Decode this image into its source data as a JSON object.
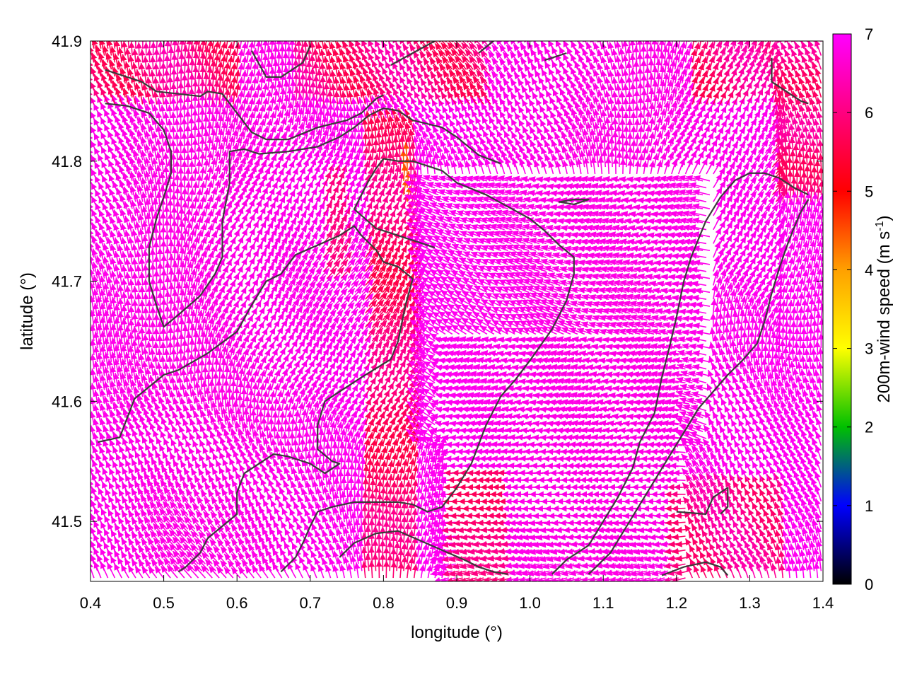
{
  "chart_data": {
    "type": "vector-field",
    "xlabel": "longitude (°)",
    "ylabel": "latitude (°)",
    "colorbar_label": {
      "main": "200m-wind speed (m s",
      "superscript": "-1",
      "close": ")"
    },
    "xlim": [
      0.4,
      1.4
    ],
    "ylim": [
      41.45,
      41.9
    ],
    "x_ticks": [
      {
        "value": 0.4,
        "label": "0.4"
      },
      {
        "value": 0.5,
        "label": "0.5"
      },
      {
        "value": 0.6,
        "label": "0.6"
      },
      {
        "value": 0.7,
        "label": "0.7"
      },
      {
        "value": 0.8,
        "label": "0.8"
      },
      {
        "value": 0.9,
        "label": "0.9"
      },
      {
        "value": 1.0,
        "label": "1.0"
      },
      {
        "value": 1.1,
        "label": "1.1"
      },
      {
        "value": 1.2,
        "label": "1.2"
      },
      {
        "value": 1.3,
        "label": "1.3"
      },
      {
        "value": 1.4,
        "label": "1.4"
      }
    ],
    "y_ticks": [
      {
        "value": 41.5,
        "label": "41.5"
      },
      {
        "value": 41.6,
        "label": "41.6"
      },
      {
        "value": 41.7,
        "label": "41.7"
      },
      {
        "value": 41.8,
        "label": "41.8"
      },
      {
        "value": 41.9,
        "label": "41.9"
      }
    ],
    "colorbar": {
      "range": [
        0,
        7
      ],
      "ticks": [
        {
          "value": 0,
          "label": "0"
        },
        {
          "value": 1,
          "label": "1"
        },
        {
          "value": 2,
          "label": "2"
        },
        {
          "value": 3,
          "label": "3"
        },
        {
          "value": 4,
          "label": "4"
        },
        {
          "value": 5,
          "label": "5"
        },
        {
          "value": 6,
          "label": "6"
        },
        {
          "value": 7,
          "label": "7"
        }
      ],
      "palette": [
        "#000000",
        "#0000ff",
        "#00c000",
        "#ffff00",
        "#ffa000",
        "#ff0000",
        "#ff00ff"
      ]
    },
    "grid": false,
    "contours": [
      [
        [
          0.42,
          41.876
        ],
        [
          0.44,
          41.872
        ],
        [
          0.47,
          41.866
        ],
        [
          0.49,
          41.858
        ],
        [
          0.52,
          41.856
        ],
        [
          0.55,
          41.854
        ],
        [
          0.56,
          41.858
        ],
        [
          0.58,
          41.856
        ],
        [
          0.6,
          41.84
        ],
        [
          0.62,
          41.824
        ],
        [
          0.64,
          41.818
        ],
        [
          0.67,
          41.818
        ],
        [
          0.69,
          41.823
        ],
        [
          0.71,
          41.828
        ],
        [
          0.73,
          41.831
        ],
        [
          0.75,
          41.834
        ],
        [
          0.77,
          41.84
        ],
        [
          0.79,
          41.852
        ],
        [
          0.8,
          41.855
        ]
      ],
      [
        [
          0.42,
          41.848
        ],
        [
          0.45,
          41.846
        ],
        [
          0.48,
          41.84
        ],
        [
          0.5,
          41.826
        ],
        [
          0.51,
          41.808
        ],
        [
          0.51,
          41.79
        ],
        [
          0.5,
          41.77
        ],
        [
          0.49,
          41.752
        ],
        [
          0.48,
          41.728
        ],
        [
          0.48,
          41.7
        ],
        [
          0.49,
          41.68
        ],
        [
          0.5,
          41.662
        ],
        [
          0.52,
          41.672
        ],
        [
          0.55,
          41.688
        ],
        [
          0.57,
          41.706
        ],
        [
          0.58,
          41.72
        ],
        [
          0.58,
          41.75
        ],
        [
          0.59,
          41.782
        ],
        [
          0.59,
          41.808
        ],
        [
          0.61,
          41.81
        ],
        [
          0.63,
          41.806
        ],
        [
          0.67,
          41.808
        ],
        [
          0.71,
          41.812
        ],
        [
          0.74,
          41.82
        ],
        [
          0.76,
          41.828
        ],
        [
          0.78,
          41.838
        ],
        [
          0.8,
          41.844
        ],
        [
          0.82,
          41.842
        ],
        [
          0.84,
          41.834
        ],
        [
          0.88,
          41.828
        ],
        [
          0.9,
          41.82
        ],
        [
          0.93,
          41.805
        ],
        [
          0.96,
          41.798
        ]
      ],
      [
        [
          0.41,
          41.566
        ],
        [
          0.44,
          41.57
        ],
        [
          0.46,
          41.602
        ],
        [
          0.5,
          41.622
        ],
        [
          0.52,
          41.626
        ],
        [
          0.56,
          41.64
        ],
        [
          0.6,
          41.658
        ],
        [
          0.62,
          41.68
        ],
        [
          0.64,
          41.7
        ],
        [
          0.66,
          41.706
        ],
        [
          0.68,
          41.722
        ],
        [
          0.71,
          41.73
        ],
        [
          0.74,
          41.738
        ],
        [
          0.76,
          41.746
        ],
        [
          0.77,
          41.738
        ],
        [
          0.79,
          41.726
        ],
        [
          0.8,
          41.716
        ],
        [
          0.82,
          41.712
        ],
        [
          0.84,
          41.702
        ],
        [
          0.83,
          41.68
        ],
        [
          0.82,
          41.65
        ],
        [
          0.81,
          41.635
        ],
        [
          0.77,
          41.62
        ],
        [
          0.72,
          41.6
        ],
        [
          0.71,
          41.58
        ],
        [
          0.71,
          41.56
        ],
        [
          0.73,
          41.55
        ],
        [
          0.74,
          41.548
        ],
        [
          0.72,
          41.54
        ],
        [
          0.7,
          41.548
        ],
        [
          0.67,
          41.554
        ],
        [
          0.65,
          41.556
        ],
        [
          0.63,
          41.548
        ],
        [
          0.61,
          41.54
        ],
        [
          0.6,
          41.524
        ],
        [
          0.6,
          41.506
        ],
        [
          0.58,
          41.496
        ],
        [
          0.56,
          41.486
        ],
        [
          0.55,
          41.474
        ],
        [
          0.53,
          41.462
        ],
        [
          0.52,
          41.458
        ]
      ],
      [
        [
          0.66,
          41.458
        ],
        [
          0.68,
          41.47
        ],
        [
          0.69,
          41.482
        ],
        [
          0.7,
          41.496
        ],
        [
          0.71,
          41.508
        ],
        [
          0.73,
          41.512
        ],
        [
          0.76,
          41.516
        ],
        [
          0.79,
          41.516
        ],
        [
          0.82,
          41.516
        ],
        [
          0.84,
          41.514
        ],
        [
          0.86,
          41.508
        ],
        [
          0.88,
          41.512
        ],
        [
          0.9,
          41.528
        ],
        [
          0.92,
          41.548
        ],
        [
          0.94,
          41.58
        ],
        [
          0.96,
          41.604
        ],
        [
          0.98,
          41.618
        ],
        [
          1.0,
          41.634
        ],
        [
          1.03,
          41.66
        ],
        [
          1.05,
          41.684
        ],
        [
          1.06,
          41.706
        ],
        [
          1.06,
          41.72
        ],
        [
          1.04,
          41.73
        ],
        [
          1.02,
          41.742
        ],
        [
          1.0,
          41.752
        ],
        [
          0.97,
          41.762
        ],
        [
          0.94,
          41.772
        ],
        [
          0.9,
          41.782
        ],
        [
          0.88,
          41.792
        ],
        [
          0.86,
          41.796
        ],
        [
          0.84,
          41.8
        ],
        [
          0.82,
          41.8
        ],
        [
          0.8,
          41.802
        ],
        [
          0.79,
          41.794
        ],
        [
          0.78,
          41.784
        ],
        [
          0.77,
          41.772
        ],
        [
          0.76,
          41.76
        ],
        [
          0.79,
          41.744
        ],
        [
          0.81,
          41.74
        ],
        [
          0.83,
          41.736
        ],
        [
          0.85,
          41.732
        ],
        [
          0.87,
          41.728
        ]
      ],
      [
        [
          0.74,
          41.47
        ],
        [
          0.76,
          41.482
        ],
        [
          0.79,
          41.49
        ],
        [
          0.82,
          41.492
        ],
        [
          0.85,
          41.484
        ],
        [
          0.88,
          41.476
        ],
        [
          0.91,
          41.468
        ],
        [
          0.93,
          41.462
        ],
        [
          0.95,
          41.458
        ],
        [
          0.97,
          41.456
        ]
      ],
      [
        [
          1.03,
          41.456
        ],
        [
          1.05,
          41.468
        ],
        [
          1.08,
          41.48
        ],
        [
          1.1,
          41.5
        ],
        [
          1.12,
          41.52
        ],
        [
          1.14,
          41.544
        ],
        [
          1.15,
          41.566
        ],
        [
          1.17,
          41.59
        ],
        [
          1.18,
          41.62
        ],
        [
          1.19,
          41.644
        ],
        [
          1.2,
          41.67
        ],
        [
          1.21,
          41.7
        ],
        [
          1.22,
          41.72
        ],
        [
          1.24,
          41.75
        ],
        [
          1.26,
          41.77
        ],
        [
          1.28,
          41.784
        ],
        [
          1.3,
          41.79
        ],
        [
          1.32,
          41.79
        ],
        [
          1.34,
          41.786
        ],
        [
          1.36,
          41.778
        ],
        [
          1.38,
          41.772
        ]
      ],
      [
        [
          1.08,
          41.456
        ],
        [
          1.11,
          41.474
        ],
        [
          1.13,
          41.494
        ],
        [
          1.15,
          41.514
        ],
        [
          1.17,
          41.534
        ],
        [
          1.19,
          41.554
        ],
        [
          1.21,
          41.574
        ],
        [
          1.23,
          41.594
        ],
        [
          1.25,
          41.608
        ],
        [
          1.27,
          41.622
        ],
        [
          1.29,
          41.634
        ],
        [
          1.31,
          41.648
        ],
        [
          1.32,
          41.666
        ],
        [
          1.33,
          41.69
        ],
        [
          1.34,
          41.71
        ],
        [
          1.35,
          41.728
        ],
        [
          1.36,
          41.744
        ],
        [
          1.37,
          41.758
        ],
        [
          1.38,
          41.768
        ]
      ],
      [
        [
          1.18,
          41.455
        ],
        [
          1.21,
          41.462
        ],
        [
          1.24,
          41.466
        ],
        [
          1.26,
          41.462
        ],
        [
          1.27,
          41.455
        ]
      ],
      [
        [
          1.2,
          41.508
        ],
        [
          1.24,
          41.506
        ],
        [
          1.25,
          41.52
        ],
        [
          1.27,
          41.528
        ],
        [
          1.27,
          41.512
        ],
        [
          1.26,
          41.506
        ]
      ],
      [
        [
          1.33,
          41.886
        ],
        [
          1.33,
          41.866
        ],
        [
          1.35,
          41.858
        ],
        [
          1.37,
          41.85
        ],
        [
          1.38,
          41.848
        ]
      ],
      [
        [
          0.62,
          41.892
        ],
        [
          0.64,
          41.87
        ],
        [
          0.66,
          41.87
        ],
        [
          0.69,
          41.882
        ],
        [
          0.7,
          41.896
        ]
      ],
      [
        [
          0.81,
          41.88
        ],
        [
          0.84,
          41.89
        ],
        [
          0.87,
          41.9
        ]
      ],
      [
        [
          0.93,
          41.89
        ],
        [
          0.95,
          41.9
        ]
      ],
      [
        [
          1.02,
          41.884
        ],
        [
          1.05,
          41.89
        ]
      ],
      [
        [
          1.06,
          41.768
        ],
        [
          1.08,
          41.768
        ],
        [
          1.06,
          41.764
        ],
        [
          1.04,
          41.766
        ],
        [
          1.06,
          41.768
        ]
      ]
    ]
  }
}
